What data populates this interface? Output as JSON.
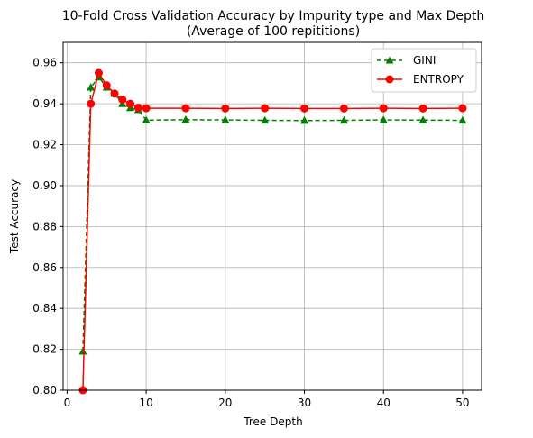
{
  "chart_data": {
    "type": "line",
    "title": "10-Fold Cross Validation Accuracy by Impurity type and Max Depth",
    "subtitle": "(Average of 100 repititions)",
    "xlabel": "Tree Depth",
    "ylabel": "Test Accuracy",
    "xlim": [
      -0.5,
      52.4
    ],
    "ylim": [
      0.8,
      0.97
    ],
    "xticks": [
      0,
      10,
      20,
      30,
      40,
      50
    ],
    "yticks": [
      0.8,
      0.82,
      0.84,
      0.86,
      0.88,
      0.9,
      0.92,
      0.94,
      0.96
    ],
    "xtick_labels": [
      "0",
      "10",
      "20",
      "30",
      "40",
      "50"
    ],
    "ytick_labels": [
      "0.80",
      "0.82",
      "0.84",
      "0.86",
      "0.88",
      "0.90",
      "0.92",
      "0.94",
      "0.96"
    ],
    "grid": true,
    "legend_position": "top-right",
    "series": [
      {
        "name": "GINI",
        "color": "#008000",
        "line_style": "dashed",
        "marker": "triangle",
        "x": [
          2,
          3,
          4,
          5,
          6,
          7,
          8,
          9,
          10,
          15,
          20,
          25,
          30,
          35,
          40,
          45,
          50
        ],
        "y": [
          0.819,
          0.948,
          0.953,
          0.948,
          0.945,
          0.94,
          0.938,
          0.937,
          0.932,
          0.9322,
          0.9321,
          0.9319,
          0.9318,
          0.9319,
          0.9321,
          0.932,
          0.9319
        ]
      },
      {
        "name": "ENTROPY",
        "color": "#ff0000",
        "line_style": "solid",
        "marker": "circle",
        "x": [
          2,
          3,
          4,
          5,
          6,
          7,
          8,
          9,
          10,
          15,
          20,
          25,
          30,
          35,
          40,
          45,
          50
        ],
        "y": [
          0.8,
          0.94,
          0.955,
          0.949,
          0.945,
          0.942,
          0.94,
          0.938,
          0.9378,
          0.9378,
          0.9377,
          0.9378,
          0.9377,
          0.9377,
          0.9378,
          0.9377,
          0.9378
        ]
      }
    ]
  }
}
